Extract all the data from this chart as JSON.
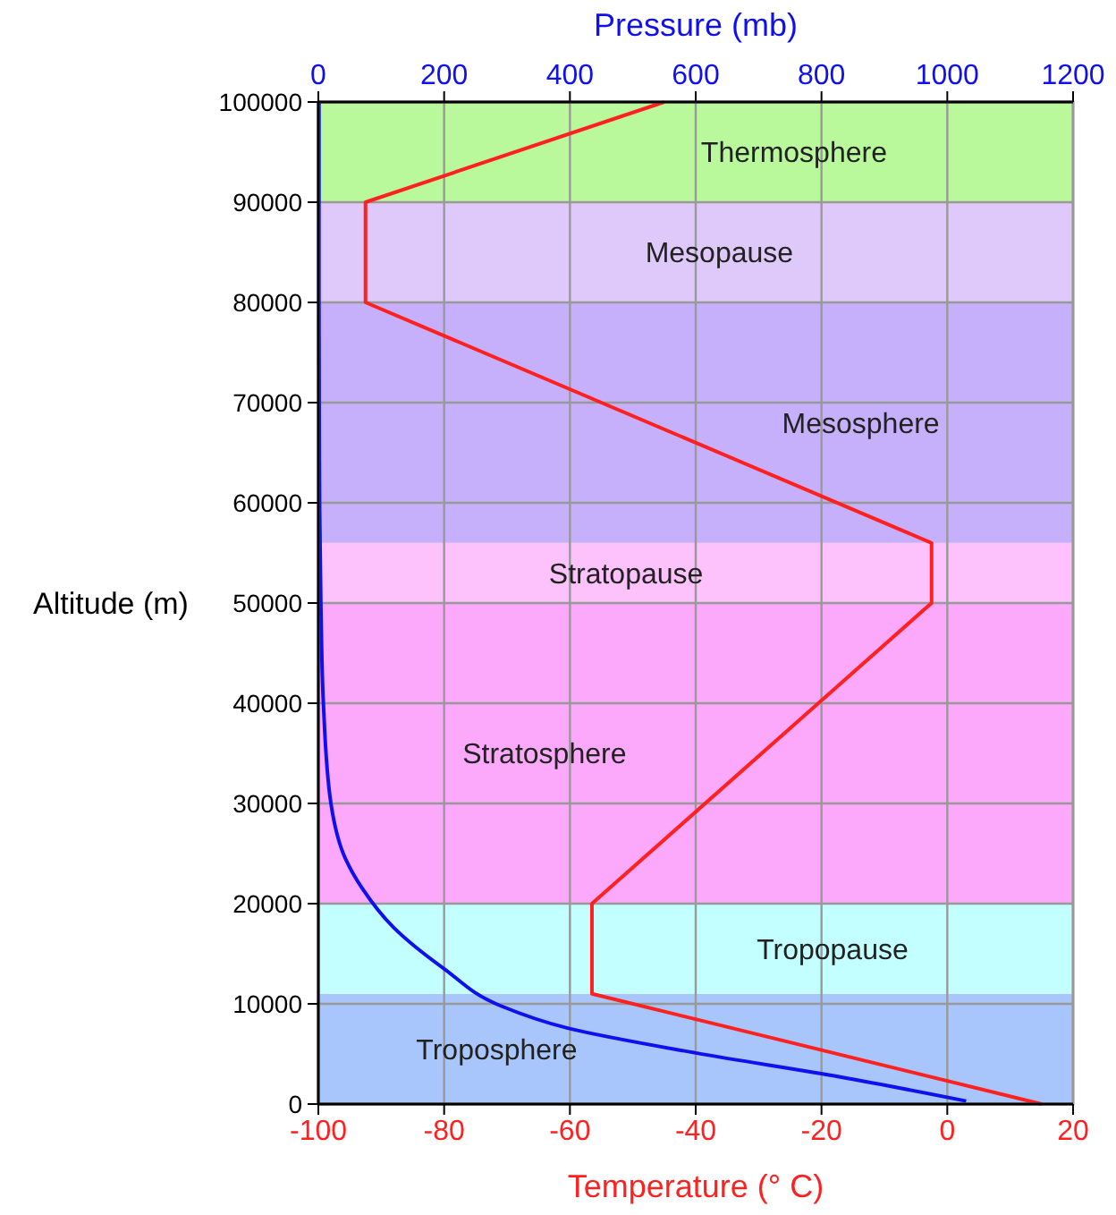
{
  "chart_data": {
    "type": "line",
    "xlabel": "Temperature (° C)",
    "x2label": "Pressure (mb)",
    "ylabel": "Altitude (m)",
    "xlim": [
      -100,
      20
    ],
    "xticks": [
      -100,
      -80,
      -60,
      -40,
      -20,
      0,
      20
    ],
    "x2lim": [
      0,
      1200
    ],
    "x2ticks": [
      0,
      200,
      400,
      600,
      800,
      1000,
      1200
    ],
    "ylim": [
      0,
      100000
    ],
    "yticks": [
      0,
      10000,
      20000,
      30000,
      40000,
      50000,
      60000,
      70000,
      80000,
      90000,
      100000
    ],
    "grid": true,
    "series": [
      {
        "color": "#ff2020",
        "x": [
          15,
          -56.5,
          -56.5,
          -2.5,
          -2.5,
          -92.5,
          -92.5,
          -45
        ],
        "values": [
          0,
          11000,
          20000,
          50000,
          56000,
          80000,
          90000,
          100000
        ]
      },
      {
        "color": "#1010ee",
        "axis": "x2",
        "x": [
          1030,
          830,
          600,
          395,
          290,
          200,
          120,
          70,
          43,
          20,
          8,
          4,
          2,
          1,
          1
        ],
        "values": [
          300,
          2700,
          5100,
          7600,
          9800,
          13500,
          17600,
          21500,
          24500,
          30000,
          40000,
          50000,
          60000,
          80000,
          100000
        ]
      }
    ],
    "bands": [
      {
        "axis": "y",
        "from": 0,
        "to": 11000,
        "label": "Troposphere",
        "color": "#a8c6fb"
      },
      {
        "axis": "y",
        "from": 11000,
        "to": 20000,
        "label": "Tropopause",
        "color": "#c3ffff"
      },
      {
        "axis": "y",
        "from": 20000,
        "to": 50000,
        "label": "Stratosphere",
        "color": "#fda9fb"
      },
      {
        "axis": "y",
        "from": 50000,
        "to": 56000,
        "label": "Stratopause",
        "color": "#fdc2fc"
      },
      {
        "axis": "y",
        "from": 56000,
        "to": 80000,
        "label": "Mesosphere",
        "color": "#c6b0fb"
      },
      {
        "axis": "y",
        "from": 80000,
        "to": 90000,
        "label": "Mesopause",
        "color": "#dfc9fb"
      },
      {
        "axis": "y",
        "from": 90000,
        "to": 100000,
        "label": "Thermosphere",
        "color": "#b9f99b"
      }
    ]
  }
}
